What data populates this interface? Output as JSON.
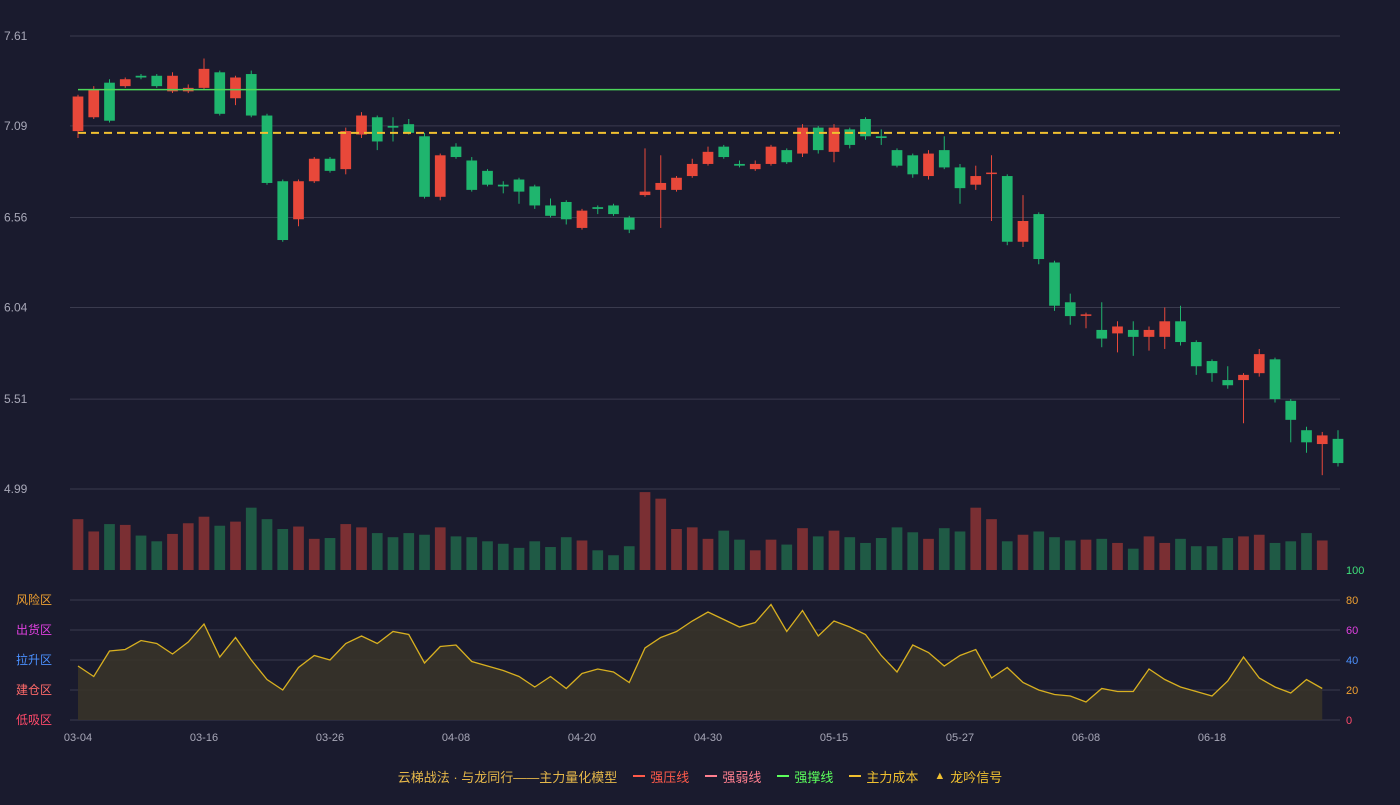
{
  "colors": {
    "background": "#1a1b2e",
    "up": "#e8483a",
    "down": "#1fb56e",
    "volume_up": "#7a2f33",
    "volume_down": "#1f5a45",
    "support_line": "#4cd65a",
    "cost_line": "#f0c030",
    "oscillator_line": "#d8b020",
    "grid": "#3a3b4e"
  },
  "chart_data": [
    {
      "type": "candlestick",
      "y_ticks": [
        "7.61",
        "7.09",
        "6.56",
        "6.04",
        "5.51",
        "4.99"
      ],
      "ylim": [
        4.99,
        7.61
      ],
      "x_ticks": [
        "03-04",
        "03-16",
        "03-26",
        "04-08",
        "04-20",
        "04-30",
        "05-15",
        "05-27",
        "06-08",
        "06-18"
      ],
      "x_tick_index": [
        0,
        8,
        16,
        24,
        32,
        40,
        48,
        56,
        64,
        72
      ],
      "support_line": 7.3,
      "cost_line": 7.05,
      "ohlc": [
        [
          7.06,
          7.26,
          7.27,
          7.02
        ],
        [
          7.14,
          7.3,
          7.32,
          7.13
        ],
        [
          7.34,
          7.12,
          7.36,
          7.11
        ],
        [
          7.32,
          7.36,
          7.37,
          7.31
        ],
        [
          7.38,
          7.37,
          7.39,
          7.36
        ],
        [
          7.38,
          7.32,
          7.39,
          7.31
        ],
        [
          7.29,
          7.38,
          7.4,
          7.28
        ],
        [
          7.29,
          7.31,
          7.33,
          7.28
        ],
        [
          7.31,
          7.42,
          7.48,
          7.3
        ],
        [
          7.4,
          7.16,
          7.41,
          7.15
        ],
        [
          7.25,
          7.37,
          7.38,
          7.21
        ],
        [
          7.39,
          7.15,
          7.41,
          7.14
        ],
        [
          7.15,
          6.76,
          7.16,
          6.75
        ],
        [
          6.77,
          6.43,
          6.78,
          6.42
        ],
        [
          6.55,
          6.77,
          6.78,
          6.51
        ],
        [
          6.77,
          6.9,
          6.91,
          6.76
        ],
        [
          6.9,
          6.83,
          6.91,
          6.82
        ],
        [
          6.84,
          7.06,
          7.08,
          6.81
        ],
        [
          7.04,
          7.15,
          7.17,
          7.02
        ],
        [
          7.14,
          7.0,
          7.15,
          6.95
        ],
        [
          7.09,
          7.08,
          7.14,
          7.0
        ],
        [
          7.1,
          7.05,
          7.13,
          7.04
        ],
        [
          7.03,
          6.68,
          7.05,
          6.67
        ],
        [
          6.68,
          6.92,
          6.93,
          6.66
        ],
        [
          6.97,
          6.91,
          6.99,
          6.9
        ],
        [
          6.89,
          6.72,
          6.91,
          6.71
        ],
        [
          6.83,
          6.75,
          6.84,
          6.74
        ],
        [
          6.75,
          6.74,
          6.77,
          6.7
        ],
        [
          6.78,
          6.71,
          6.79,
          6.64
        ],
        [
          6.74,
          6.63,
          6.75,
          6.61
        ],
        [
          6.63,
          6.57,
          6.67,
          6.56
        ],
        [
          6.65,
          6.55,
          6.66,
          6.52
        ],
        [
          6.5,
          6.6,
          6.61,
          6.49
        ],
        [
          6.62,
          6.61,
          6.63,
          6.58
        ],
        [
          6.63,
          6.58,
          6.64,
          6.57
        ],
        [
          6.56,
          6.49,
          6.57,
          6.47
        ],
        [
          6.69,
          6.71,
          6.96,
          6.68
        ],
        [
          6.72,
          6.76,
          6.92,
          6.5
        ],
        [
          6.72,
          6.79,
          6.8,
          6.71
        ],
        [
          6.8,
          6.87,
          6.9,
          6.79
        ],
        [
          6.87,
          6.94,
          6.97,
          6.86
        ],
        [
          6.97,
          6.91,
          6.98,
          6.9
        ],
        [
          6.87,
          6.86,
          6.89,
          6.85
        ],
        [
          6.84,
          6.87,
          6.89,
          6.83
        ],
        [
          6.87,
          6.97,
          6.98,
          6.86
        ],
        [
          6.95,
          6.88,
          6.96,
          6.87
        ],
        [
          6.93,
          7.08,
          7.1,
          6.91
        ],
        [
          7.08,
          6.95,
          7.09,
          6.93
        ],
        [
          6.94,
          7.08,
          7.1,
          6.88
        ],
        [
          7.07,
          6.98,
          7.08,
          6.96
        ],
        [
          7.13,
          7.03,
          7.14,
          7.01
        ],
        [
          7.03,
          7.02,
          7.07,
          6.98
        ],
        [
          6.95,
          6.86,
          6.96,
          6.85
        ],
        [
          6.92,
          6.81,
          6.93,
          6.79
        ],
        [
          6.8,
          6.93,
          6.95,
          6.78
        ],
        [
          6.95,
          6.85,
          7.03,
          6.84
        ],
        [
          6.85,
          6.73,
          6.87,
          6.64
        ],
        [
          6.75,
          6.8,
          6.86,
          6.72
        ],
        [
          6.82,
          6.82,
          6.92,
          6.54
        ],
        [
          6.8,
          6.42,
          6.81,
          6.4
        ],
        [
          6.42,
          6.54,
          6.69,
          6.39
        ],
        [
          6.58,
          6.32,
          6.59,
          6.29
        ],
        [
          6.3,
          6.05,
          6.31,
          6.02
        ],
        [
          6.07,
          5.99,
          6.12,
          5.94
        ],
        [
          6.0,
          6.0,
          6.01,
          5.92
        ],
        [
          5.91,
          5.86,
          6.07,
          5.81
        ],
        [
          5.89,
          5.93,
          5.96,
          5.78
        ],
        [
          5.91,
          5.87,
          5.96,
          5.76
        ],
        [
          5.87,
          5.91,
          5.93,
          5.79
        ],
        [
          5.87,
          5.96,
          6.04,
          5.8
        ],
        [
          5.96,
          5.84,
          6.05,
          5.82
        ],
        [
          5.84,
          5.7,
          5.85,
          5.65
        ],
        [
          5.73,
          5.66,
          5.74,
          5.61
        ],
        [
          5.62,
          5.59,
          5.7,
          5.57
        ],
        [
          5.62,
          5.65,
          5.66,
          5.37
        ],
        [
          5.66,
          5.77,
          5.8,
          5.64
        ],
        [
          5.74,
          5.51,
          5.75,
          5.49
        ],
        [
          5.5,
          5.39,
          5.51,
          5.26
        ],
        [
          5.33,
          5.26,
          5.35,
          5.2
        ],
        [
          5.25,
          5.3,
          5.32,
          5.07
        ],
        [
          5.28,
          5.14,
          5.33,
          5.12
        ]
      ],
      "volume": [
        0.62,
        0.47,
        0.56,
        0.55,
        0.42,
        0.35,
        0.44,
        0.57,
        0.65,
        0.54,
        0.59,
        0.76,
        0.62,
        0.5,
        0.53,
        0.38,
        0.39,
        0.56,
        0.52,
        0.45,
        0.4,
        0.45,
        0.43,
        0.52,
        0.41,
        0.4,
        0.35,
        0.32,
        0.27,
        0.35,
        0.28,
        0.4,
        0.36,
        0.24,
        0.18,
        0.29,
        0.95,
        0.87,
        0.5,
        0.52,
        0.38,
        0.48,
        0.37,
        0.24,
        0.37,
        0.31,
        0.51,
        0.41,
        0.48,
        0.4,
        0.33,
        0.39,
        0.52,
        0.46,
        0.38,
        0.51,
        0.47,
        0.76,
        0.62,
        0.35,
        0.43,
        0.47,
        0.4,
        0.36,
        0.37,
        0.38,
        0.33,
        0.26,
        0.41,
        0.33,
        0.38,
        0.29,
        0.29,
        0.39,
        0.41,
        0.43,
        0.33,
        0.35,
        0.45,
        0.36
      ]
    },
    {
      "type": "line",
      "ylim": [
        0,
        100
      ],
      "y_ticks": [
        "100",
        "80",
        "60",
        "40",
        "20",
        "0"
      ],
      "zone_labels": [
        "风险区",
        "出货区",
        "拉升区",
        "建仓区",
        "低吸区"
      ],
      "values": [
        36,
        29,
        46,
        47,
        53,
        51,
        44,
        52,
        64,
        42,
        55,
        40,
        27,
        20,
        35,
        43,
        40,
        51,
        56,
        51,
        59,
        57,
        38,
        49,
        50,
        39,
        36,
        33,
        29,
        22,
        29,
        21,
        31,
        34,
        32,
        25,
        48,
        55,
        59,
        66,
        72,
        67,
        62,
        65,
        77,
        59,
        73,
        56,
        66,
        62,
        57,
        43,
        32,
        50,
        45,
        36,
        43,
        47,
        28,
        35,
        25,
        20,
        17,
        16,
        12,
        21,
        19,
        19,
        34,
        27,
        22,
        19,
        16,
        26,
        42,
        28,
        22,
        18,
        27,
        21
      ]
    }
  ],
  "legend": {
    "title": "云梯战法 · 与龙同行——主力量化模型",
    "items": [
      {
        "label": "强压线",
        "color": "#ff5a4a"
      },
      {
        "label": "强弱线",
        "color": "#ff7f8f"
      },
      {
        "label": "强撑线",
        "color": "#5cff5c"
      },
      {
        "label": "主力成本",
        "color": "#f0c030"
      },
      {
        "label": "龙吟信号",
        "color": "#f0c030"
      }
    ]
  }
}
